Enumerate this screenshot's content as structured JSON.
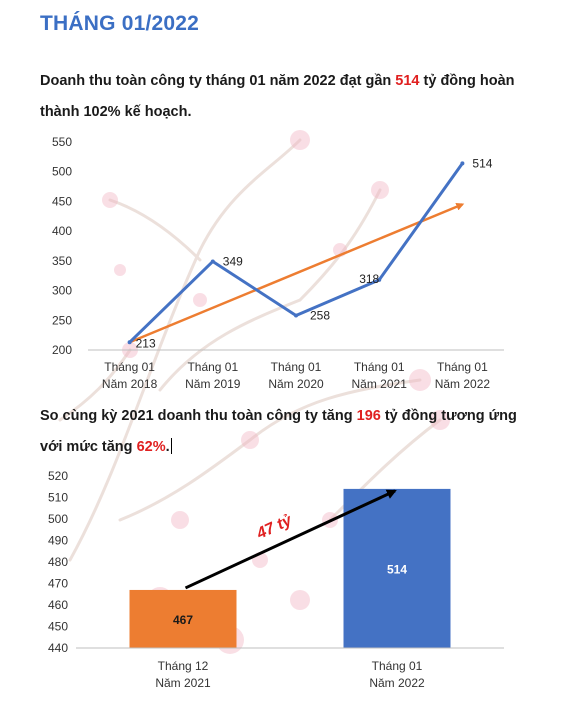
{
  "page": {
    "title": "THÁNG 01/2022",
    "para1": {
      "before": "Doanh thu toàn công ty tháng 01 năm 2022 đạt gần ",
      "highlight": "514",
      "after": " tỷ đồng hoàn thành 102% kế hoạch."
    },
    "para2": {
      "before": "So cùng kỳ 2021 doanh thu toàn công ty tăng ",
      "highlight": "196",
      "middle": " tỷ đồng tương ứng với mức tăng ",
      "highlight2": "62%",
      "after": "."
    }
  },
  "colors": {
    "title": "#3b6fc4",
    "highlight": "#e02020",
    "line_series": "#4472c4",
    "trend_arrow": "#ed7d31",
    "bar_2021": "#ed7d31",
    "bar_2022": "#4472c4",
    "annotation": "#e02020"
  },
  "chart_data": [
    {
      "type": "line",
      "categories": [
        [
          "Tháng 01",
          "Năm 2018"
        ],
        [
          "Tháng 01",
          "Năm 2019"
        ],
        [
          "Tháng 01",
          "Năm 2020"
        ],
        [
          "Tháng 01",
          "Năm 2021"
        ],
        [
          "Tháng 01",
          "Năm 2022"
        ]
      ],
      "values": [
        213,
        349,
        258,
        318,
        514
      ],
      "data_labels": [
        "213",
        "349",
        "258",
        "318",
        "514"
      ],
      "yticks": [
        "550",
        "500",
        "450",
        "400",
        "350",
        "300",
        "250",
        "200"
      ],
      "ylim": [
        200,
        550
      ],
      "trend_arrow": {
        "from": 213,
        "to": 445
      },
      "grid": false
    },
    {
      "type": "bar",
      "categories": [
        [
          "Tháng 12",
          "Năm 2021"
        ],
        [
          "Tháng 01",
          "Năm 2022"
        ]
      ],
      "values": [
        467,
        514
      ],
      "data_labels": [
        "467",
        "514"
      ],
      "yticks": [
        "520",
        "510",
        "500",
        "490",
        "480",
        "470",
        "460",
        "450",
        "440"
      ],
      "ylim": [
        440,
        520
      ],
      "annotation": "47 tỷ",
      "grid": false
    }
  ]
}
